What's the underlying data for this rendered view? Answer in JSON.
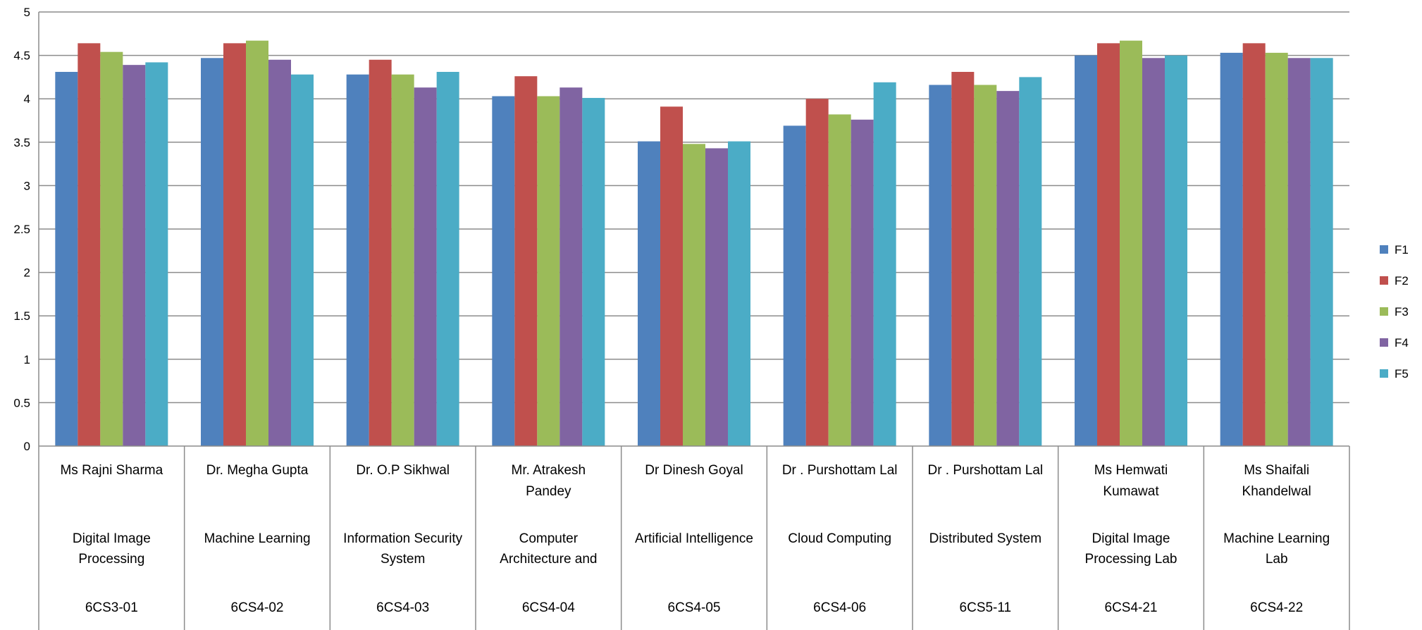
{
  "chart_data": {
    "type": "bar",
    "grid": true,
    "legend_position": "right",
    "ylim": [
      0,
      5
    ],
    "yticks": [
      "0",
      "0.5",
      "1",
      "1.5",
      "2",
      "2.5",
      "3",
      "3.5",
      "4",
      "4.5",
      "5"
    ],
    "categories": [
      {
        "lines": [
          "Ms Rajni Sharma",
          "",
          "Digital Image",
          "Processing",
          "",
          "6CS3-01"
        ]
      },
      {
        "lines": [
          "Dr. Megha Gupta",
          "",
          "Machine Learning",
          "",
          "",
          "6CS4-02"
        ]
      },
      {
        "lines": [
          "Dr. O.P Sikhwal",
          "",
          "Information Security",
          "System",
          "",
          "6CS4-03"
        ]
      },
      {
        "lines": [
          "Mr. Atrakesh",
          "Pandey",
          "Computer",
          "Architecture and",
          "",
          "6CS4-04"
        ]
      },
      {
        "lines": [
          "Dr Dinesh Goyal",
          "",
          "Artificial Intelligence",
          "",
          "",
          "6CS4-05"
        ]
      },
      {
        "lines": [
          "Dr . Purshottam Lal",
          "",
          "Cloud Computing",
          "",
          "",
          "6CS4-06"
        ]
      },
      {
        "lines": [
          "Dr . Purshottam Lal",
          "",
          "Distributed System",
          "",
          "",
          "6CS5-11"
        ]
      },
      {
        "lines": [
          "Ms Hemwati",
          "Kumawat",
          "Digital Image",
          "Processing Lab",
          "",
          "6CS4-21"
        ]
      },
      {
        "lines": [
          "Ms Shaifali",
          "Khandelwal",
          "Machine Learning",
          "Lab",
          "",
          "6CS4-22"
        ]
      }
    ],
    "series": [
      {
        "name": "F1",
        "color": "#4f81bd",
        "values": [
          4.31,
          4.47,
          4.28,
          4.03,
          3.51,
          3.69,
          4.16,
          4.5,
          4.53
        ]
      },
      {
        "name": "F2",
        "color": "#c0504d",
        "values": [
          4.64,
          4.64,
          4.45,
          4.26,
          3.91,
          4.0,
          4.31,
          4.64,
          4.64
        ]
      },
      {
        "name": "F3",
        "color": "#9bbb59",
        "values": [
          4.54,
          4.67,
          4.28,
          4.03,
          3.48,
          3.82,
          4.16,
          4.67,
          4.53
        ]
      },
      {
        "name": "F4",
        "color": "#8064a2",
        "values": [
          4.39,
          4.45,
          4.13,
          4.13,
          3.43,
          3.76,
          4.09,
          4.47,
          4.47
        ]
      },
      {
        "name": "F5",
        "color": "#4bacc6",
        "values": [
          4.42,
          4.28,
          4.31,
          4.01,
          3.51,
          4.19,
          4.25,
          4.5,
          4.47
        ]
      }
    ]
  }
}
